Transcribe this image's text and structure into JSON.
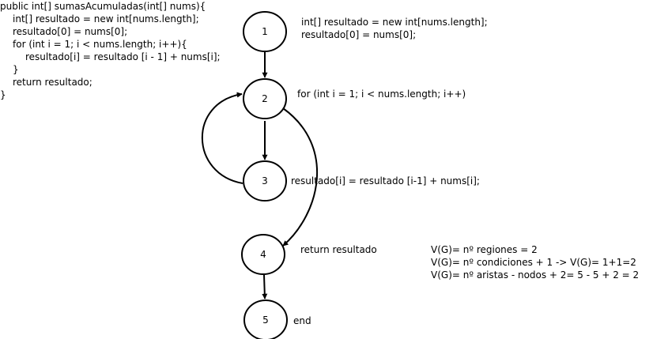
{
  "code": {
    "lines": [
      "public int[] sumasAcumuladas(int[] nums){",
      "    int[] resultado = new int[nums.length];",
      "    resultado[0] = nums[0];",
      "    for (int i = 1; i < nums.length; i++){",
      "        resultado[i] = resultado [i - 1] + nums[i];",
      "    }",
      "    return resultado;",
      "}"
    ]
  },
  "nodes": [
    {
      "id": "1",
      "label": "1"
    },
    {
      "id": "2",
      "label": "2"
    },
    {
      "id": "3",
      "label": "3"
    },
    {
      "id": "4",
      "label": "4"
    },
    {
      "id": "5",
      "label": "5"
    }
  ],
  "annotations": {
    "node1": [
      "int[] resultado = new int[nums.length];",
      "resultado[0] = nums[0];"
    ],
    "node2": "for (int i = 1; i < nums.length; i++)",
    "node3": "resultado[i] = resultado [i-1] + nums[i];",
    "node4": "return resultado",
    "node5": "end"
  },
  "complexity": [
    "V(G)= nº regiones = 2",
    "V(G)= nº condiciones + 1 -> V(G)= 1+1=2",
    "V(G)= nº aristas - nodos + 2= 5 - 5 + 2 = 2"
  ],
  "edges": [
    {
      "from": "1",
      "to": "2"
    },
    {
      "from": "2",
      "to": "3"
    },
    {
      "from": "3",
      "to": "2"
    },
    {
      "from": "2",
      "to": "4"
    },
    {
      "from": "4",
      "to": "5"
    }
  ]
}
